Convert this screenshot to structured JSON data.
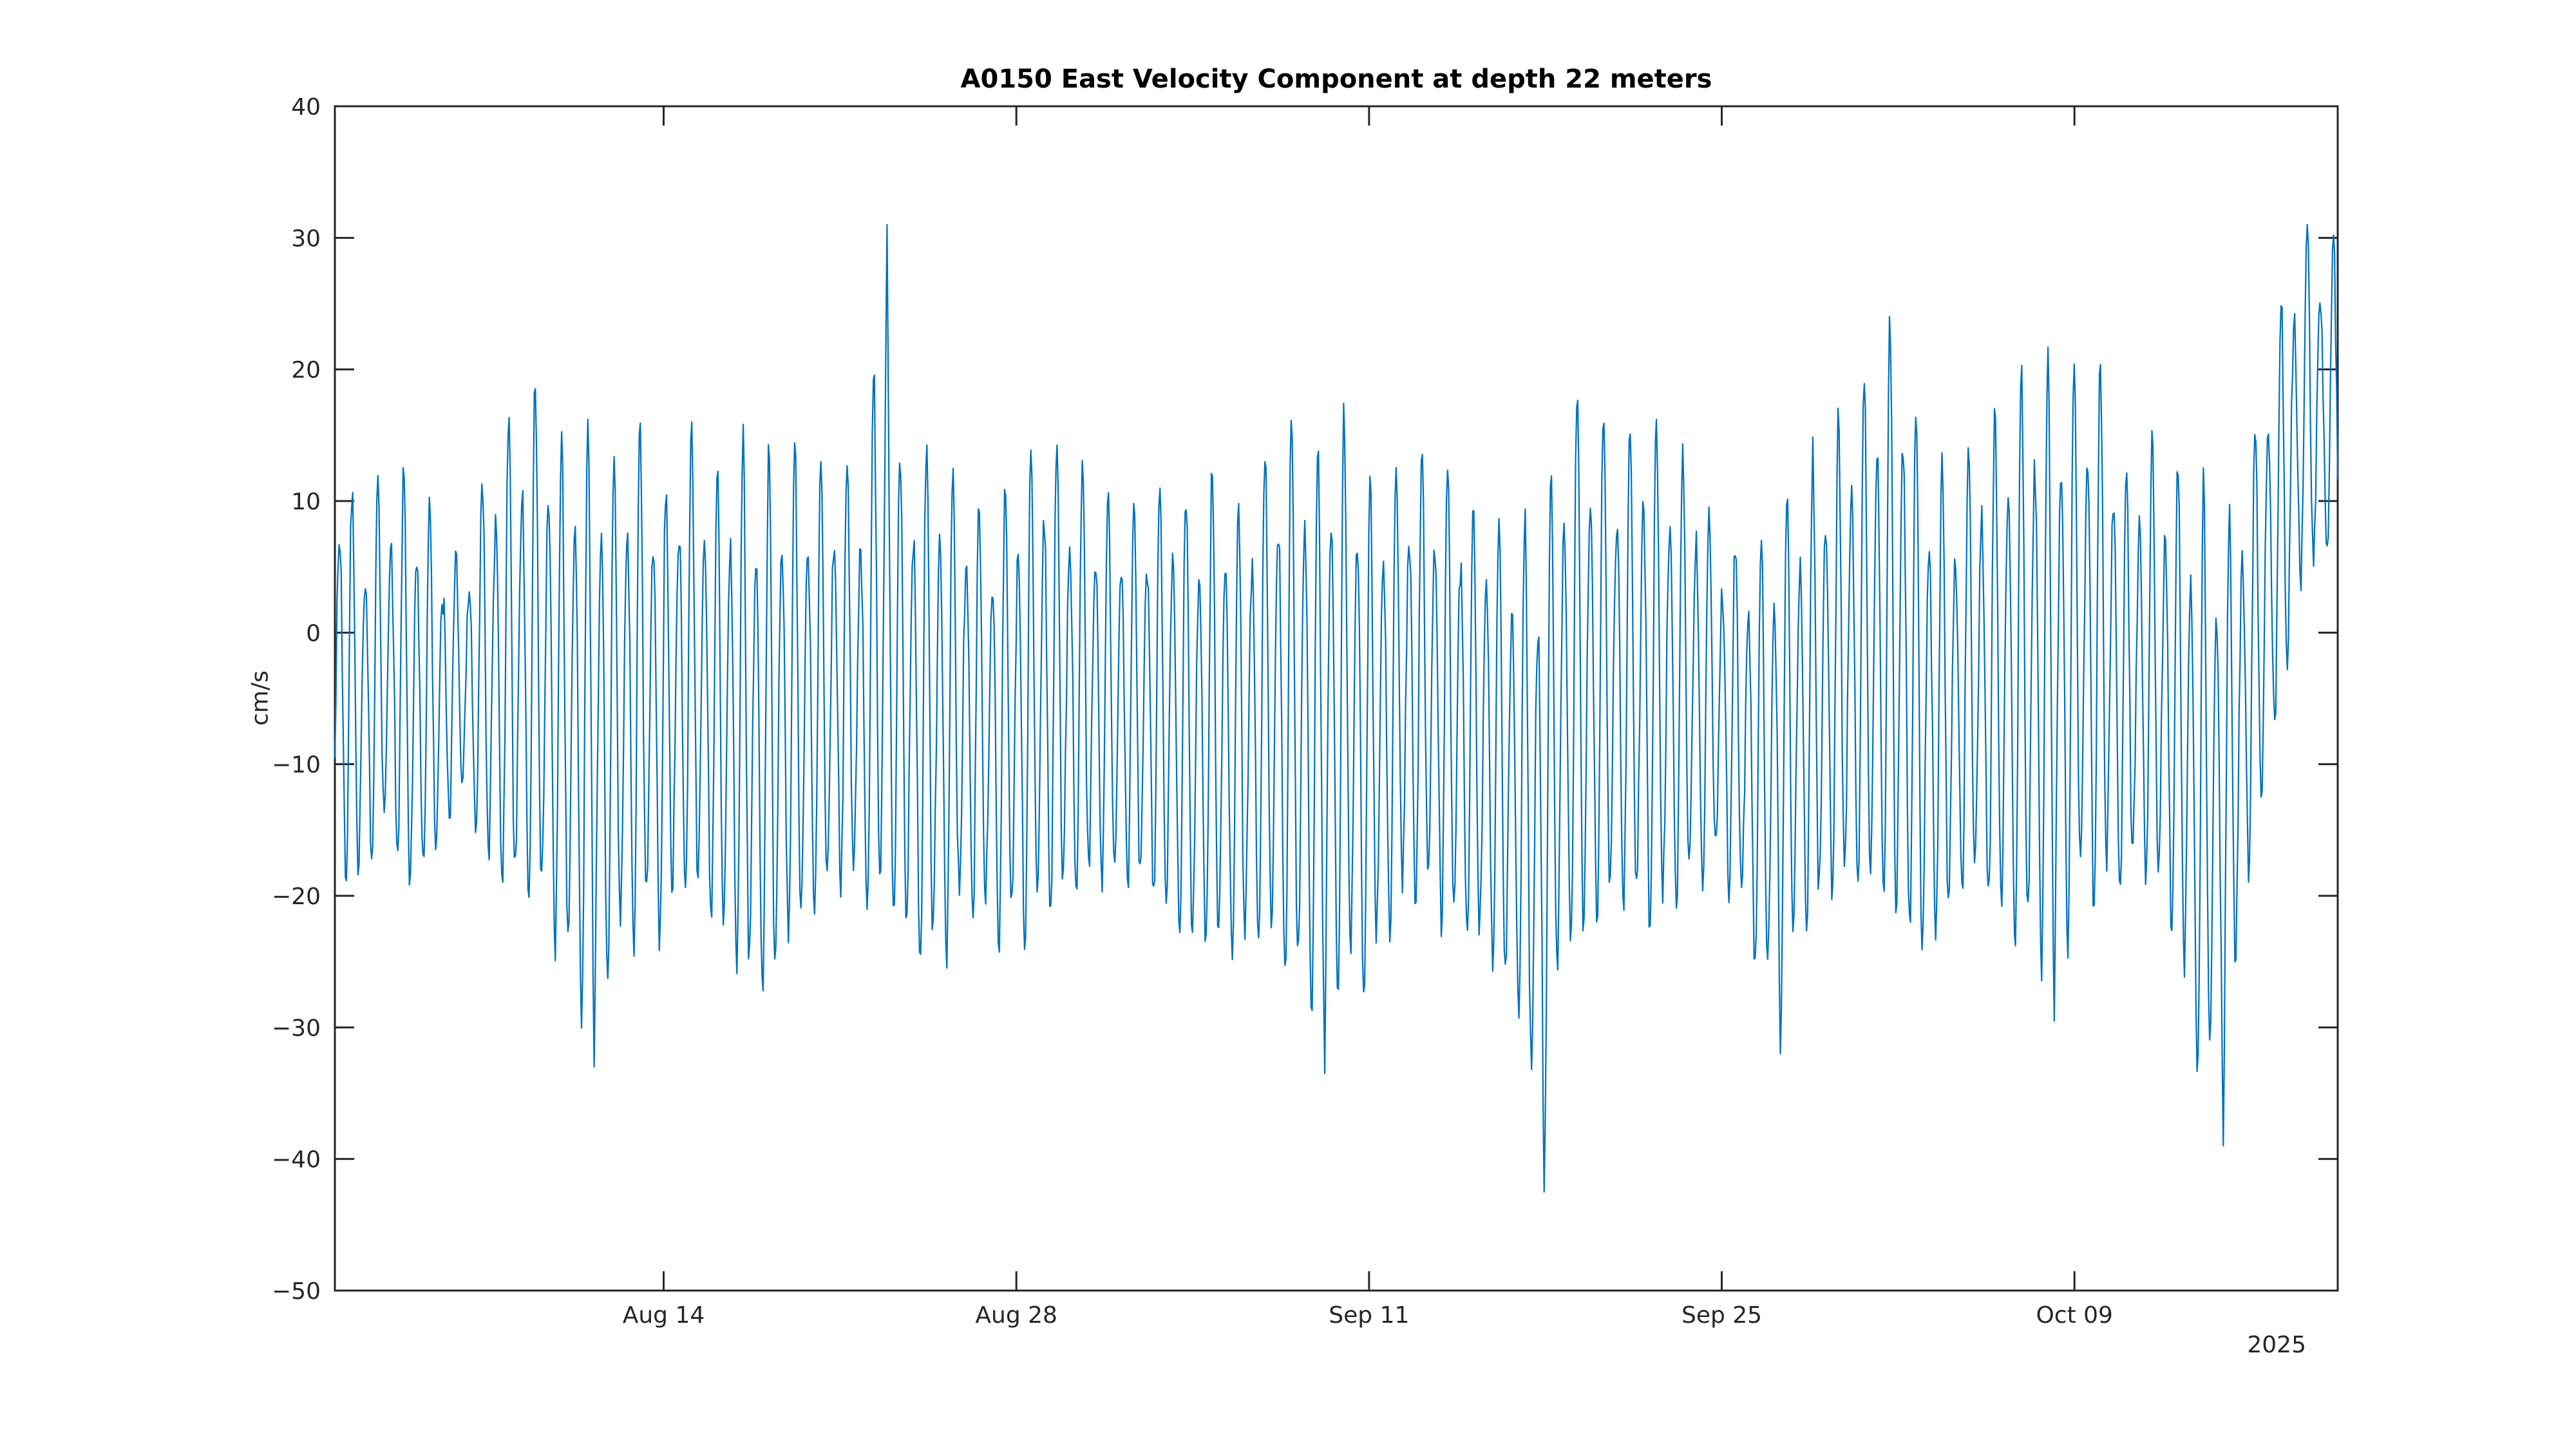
{
  "title": "A0150 East Velocity Component at depth 22 meters",
  "ylabel": "cm/s",
  "year_label": "2025",
  "colors": {
    "line": "#0072BD",
    "axis": "#262626",
    "tick_label": "#262626",
    "title": "#000000",
    "background": "#ffffff"
  },
  "chart_data": {
    "type": "line",
    "title": "A0150 East Velocity Component at depth 22 meters",
    "xlabel": "",
    "ylabel": "cm/s",
    "units": "cm/s",
    "grid": false,
    "legend": "none",
    "ylim": [
      -50,
      40
    ],
    "y_ticks": [
      40,
      30,
      20,
      10,
      0,
      -10,
      -20,
      -30,
      -40,
      -50
    ],
    "x_start_day": -0.05,
    "x_end_day": 79.45,
    "x_epoch": "day 0 = Aug 01 2025",
    "x_range_dates": [
      "Aug 01 2025",
      "Oct 19 2025"
    ],
    "x_ticks": [
      {
        "day": 13,
        "label": "Aug 14"
      },
      {
        "day": 27,
        "label": "Aug 28"
      },
      {
        "day": 41,
        "label": "Sep 11"
      },
      {
        "day": 55,
        "label": "Sep 25"
      },
      {
        "day": 69,
        "label": "Oct 09"
      }
    ],
    "series_name": "East velocity component at depth 22 m",
    "oscillation": {
      "period_days": 0.5175,
      "samples_per_day": 24,
      "springneap_period_days": 14.77,
      "diurnal_period_days": 1.0351,
      "diurnal_inequality": 0.38,
      "noise_amp": 1.3,
      "seed": 20250801
    },
    "envelope_day_min_max": [
      [
        -0.1,
        -20,
        15
      ],
      [
        0.5,
        -22,
        12
      ],
      [
        1,
        -21,
        9
      ],
      [
        2,
        -17,
        12.5
      ],
      [
        3,
        -23,
        12.5
      ],
      [
        4,
        -18,
        8
      ],
      [
        5,
        -13,
        5
      ],
      [
        6,
        -20,
        13
      ],
      [
        7,
        -23,
        17
      ],
      [
        8,
        -24,
        19.5
      ],
      [
        9,
        -27,
        15
      ],
      [
        10,
        -33,
        16.5
      ],
      [
        11,
        -28,
        13
      ],
      [
        12,
        -26,
        16.5
      ],
      [
        13,
        -25,
        11
      ],
      [
        14,
        -22,
        16.5
      ],
      [
        15,
        -25,
        12
      ],
      [
        16,
        -29,
        15.5
      ],
      [
        17,
        -31,
        13.5
      ],
      [
        18,
        -27,
        15.5
      ],
      [
        19,
        -24,
        13
      ],
      [
        20,
        -22,
        14
      ],
      [
        21,
        -23,
        13
      ],
      [
        21.85,
        -24,
        30
      ],
      [
        22.25,
        -25,
        14
      ],
      [
        23,
        -27,
        14.5
      ],
      [
        24,
        -29,
        15
      ],
      [
        25,
        -23,
        11
      ],
      [
        26,
        -25,
        9.5
      ],
      [
        27,
        -27,
        13.5
      ],
      [
        28,
        -24,
        15.5
      ],
      [
        29,
        -23,
        14
      ],
      [
        30,
        -22,
        12
      ],
      [
        31,
        -21.5,
        10.5
      ],
      [
        32,
        -22,
        11.5
      ],
      [
        33,
        -24,
        12.5
      ],
      [
        34,
        -26,
        10
      ],
      [
        35,
        -28,
        13
      ],
      [
        36,
        -27,
        10
      ],
      [
        37,
        -26,
        15
      ],
      [
        38,
        -30,
        16.5
      ],
      [
        39,
        -33.5,
        15.5
      ],
      [
        40,
        -30,
        17.5
      ],
      [
        41,
        -30,
        12
      ],
      [
        42,
        -24,
        13
      ],
      [
        43,
        -23,
        14.5
      ],
      [
        44,
        -25,
        13.5
      ],
      [
        45,
        -26,
        11
      ],
      [
        46,
        -28,
        10
      ],
      [
        47,
        -32,
        9
      ],
      [
        47.9,
        -43,
        10
      ],
      [
        48.4,
        -30,
        14
      ],
      [
        49,
        -28,
        19
      ],
      [
        50,
        -25,
        17.5
      ],
      [
        51,
        -23,
        15
      ],
      [
        52,
        -26,
        17.5
      ],
      [
        53,
        -24,
        15.5
      ],
      [
        54,
        -22,
        13
      ],
      [
        55,
        -20,
        8
      ],
      [
        56,
        -25,
        7
      ],
      [
        57,
        -32,
        9
      ],
      [
        58,
        -26,
        12
      ],
      [
        59,
        -24,
        15
      ],
      [
        60,
        -22,
        17
      ],
      [
        61,
        -24,
        21.5
      ],
      [
        62,
        -26,
        25
      ],
      [
        63,
        -28,
        14
      ],
      [
        64,
        -24,
        12
      ],
      [
        65,
        -22,
        15
      ],
      [
        66,
        -25,
        17
      ],
      [
        67,
        -27,
        21
      ],
      [
        68,
        -29.5,
        21.5
      ],
      [
        69,
        -25,
        21
      ],
      [
        70,
        -23,
        21.5
      ],
      [
        71,
        -22,
        13
      ],
      [
        72,
        -21,
        15
      ],
      [
        73,
        -26,
        13
      ],
      [
        74,
        -39,
        12
      ],
      [
        75,
        -35,
        8
      ],
      [
        76,
        -20,
        15
      ],
      [
        77,
        -10,
        24
      ],
      [
        78,
        2,
        31
      ],
      [
        79.45,
        4,
        30
      ]
    ],
    "extreme_events_day_value": [
      [
        10.3,
        -33
      ],
      [
        21.9,
        31
      ],
      [
        39.4,
        -33.5
      ],
      [
        47.9,
        -42.5
      ],
      [
        57.5,
        -32
      ],
      [
        68.1,
        -29.5
      ],
      [
        74.7,
        -39
      ],
      [
        78.15,
        31
      ]
    ]
  }
}
